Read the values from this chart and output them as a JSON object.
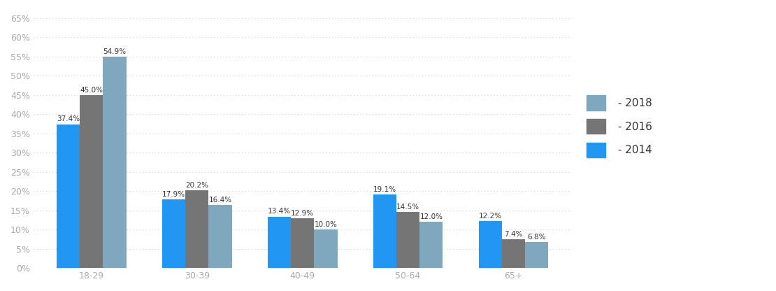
{
  "categories": [
    "18-29",
    "30-39",
    "40-49",
    "50-64",
    "65+"
  ],
  "series": {
    "2014": [
      37.4,
      17.9,
      13.4,
      19.1,
      12.2
    ],
    "2016": [
      45.0,
      20.2,
      12.9,
      14.5,
      7.4
    ],
    "2018": [
      54.9,
      16.4,
      10.0,
      12.0,
      6.8
    ]
  },
  "colors": {
    "2014": "#2196F3",
    "2016": "#757575",
    "2018": "#7FA8BE"
  },
  "legend_labels": [
    " - 2018",
    " - 2016",
    " - 2014"
  ],
  "legend_colors": [
    "#7FA8BE",
    "#757575",
    "#2196F3"
  ],
  "ylim": [
    0,
    67
  ],
  "yticks": [
    0,
    5,
    10,
    15,
    20,
    25,
    30,
    35,
    40,
    45,
    50,
    55,
    60,
    65
  ],
  "ytick_labels": [
    "0%",
    "5%",
    "10%",
    "15%",
    "20%",
    "25%",
    "30%",
    "35%",
    "40%",
    "45%",
    "50%",
    "55%",
    "60%",
    "65%"
  ],
  "bar_width": 0.22,
  "background_color": "#ffffff",
  "plot_area_color": "#ffffff",
  "label_fontsize": 7.5,
  "axis_fontsize": 9,
  "legend_fontsize": 11,
  "tick_color": "#aaaaaa",
  "grid_color": "#cccccc",
  "label_color": "#333333",
  "xtick_color": "#aaaaaa"
}
